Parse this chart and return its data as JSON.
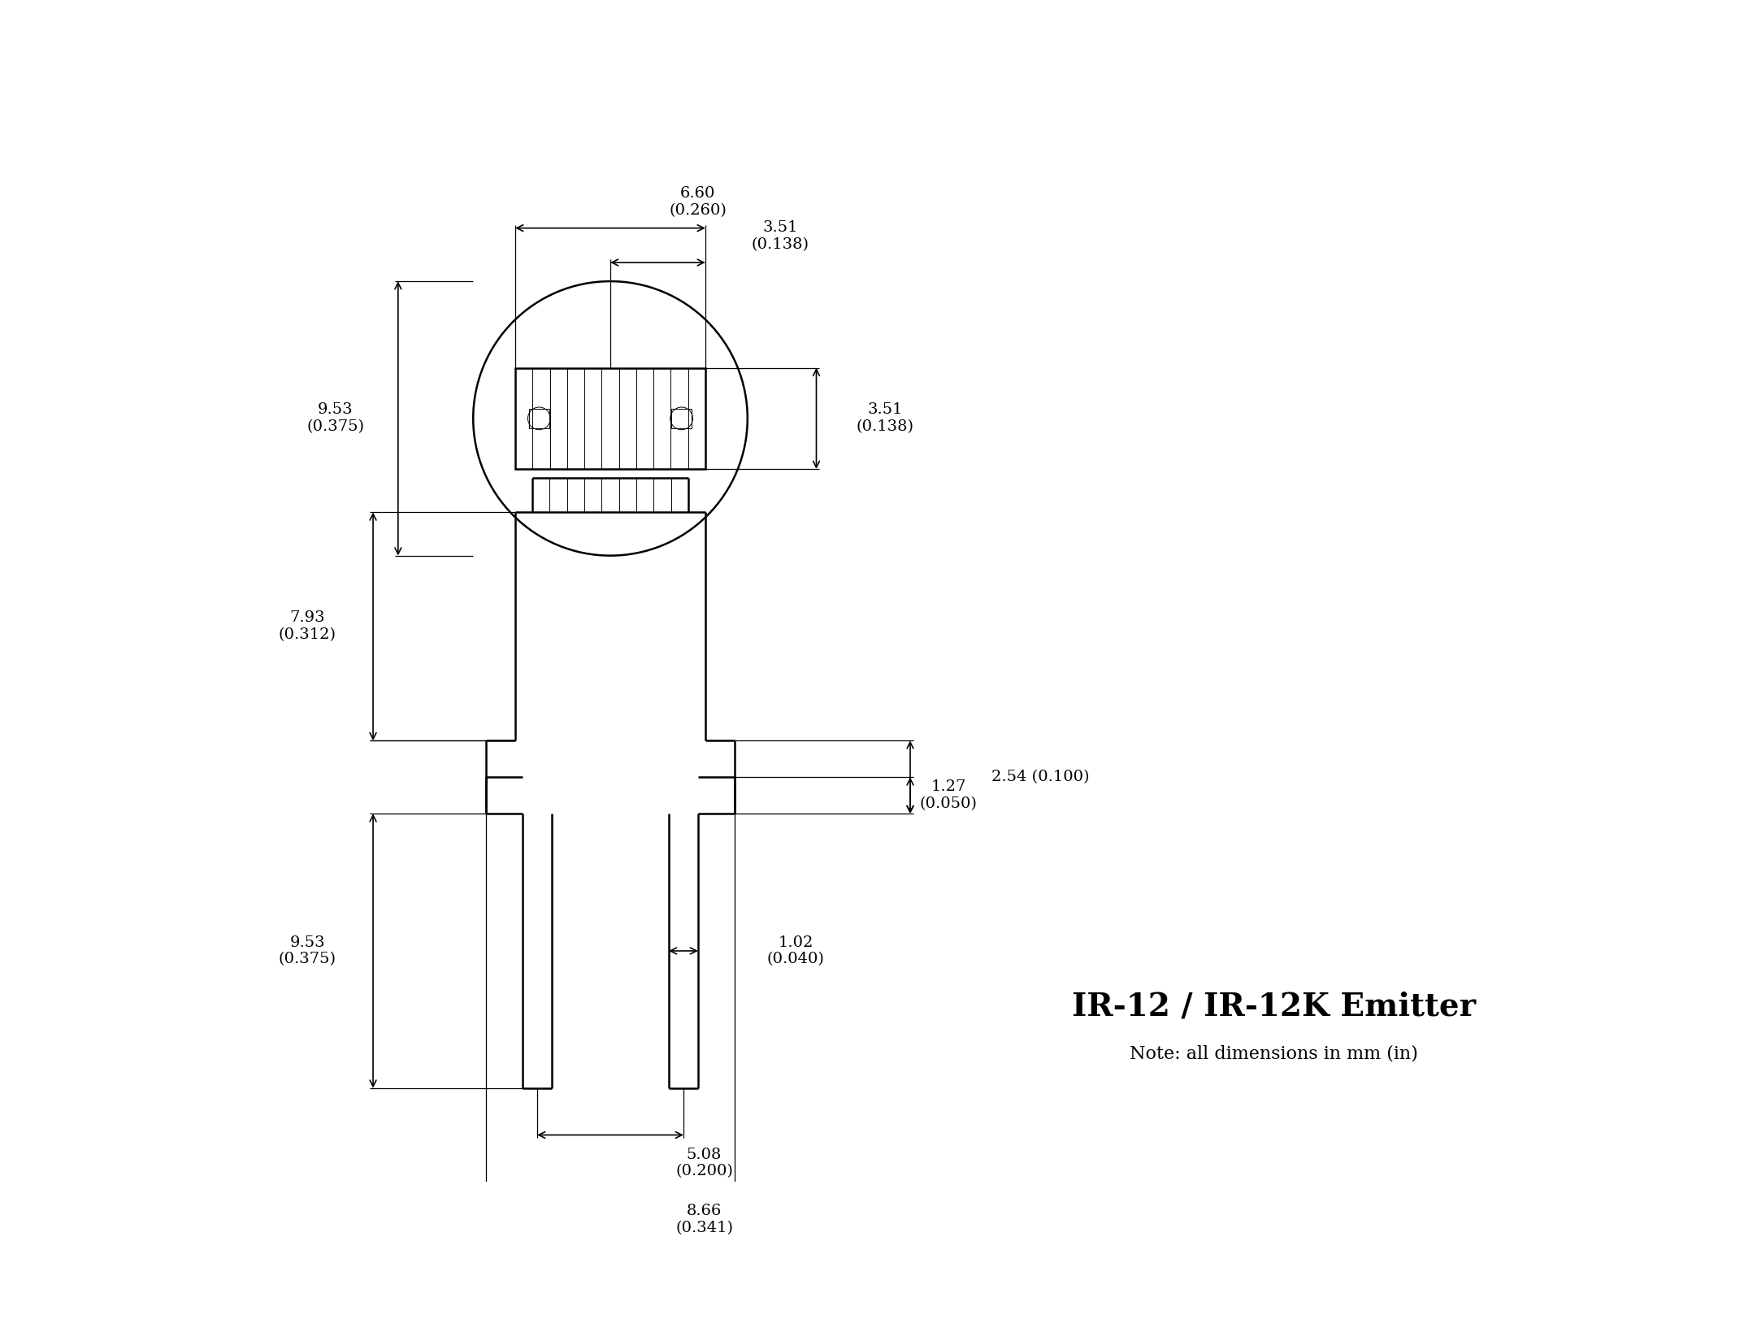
{
  "title": "IR-12 / IR-12K Emitter",
  "subtitle": "Note: all dimensions in mm (in)",
  "bg_color": "#ffffff",
  "line_color": "#000000",
  "lw_main": 1.8,
  "lw_dim": 1.2,
  "lw_ext": 0.9,
  "lw_thin": 0.7,
  "fontsize_dim": 14,
  "fontsize_title": 28,
  "fontsize_note": 16,
  "dims": {
    "d_660": "6.60\n(0.260)",
    "d_351": "3.51\n(0.138)",
    "d_953": "9.53\n(0.375)",
    "d_793": "7.93\n(0.312)",
    "d_508": "5.08\n(0.200)",
    "d_866": "8.66\n(0.341)",
    "d_254": "2.54 (0.100)",
    "d_127": "1.27\n(0.050)",
    "d_102": "1.02\n(0.040)"
  }
}
